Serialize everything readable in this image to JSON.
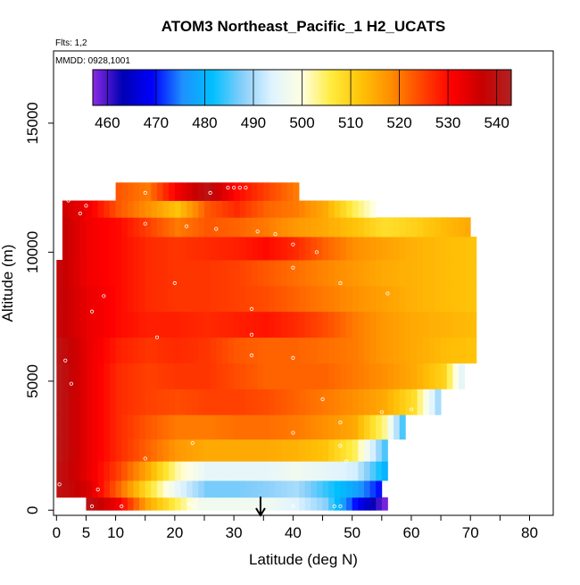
{
  "chart_data": {
    "type": "heatmap",
    "title": "ATOM3 Northeast_Pacific_1 H2_UCATS",
    "subtitle_flights": "Flts: 1,2",
    "subtitle_dates": "MMDD: 0928,1001",
    "xlabel": "Latitude (deg N)",
    "ylabel": "Altitude (m)",
    "xlim": [
      -0.5,
      84
    ],
    "ylim": [
      -200,
      17800
    ],
    "x_ticks": [
      0,
      5,
      10,
      20,
      30,
      40,
      50,
      60,
      70,
      80
    ],
    "x_ticks_unlabeled": [
      15,
      25,
      35,
      45,
      55,
      65,
      75
    ],
    "y_ticks": [
      0,
      5000,
      10000,
      15000
    ],
    "colorbar": {
      "min": 457,
      "max": 543,
      "ticks": [
        460,
        470,
        480,
        490,
        500,
        510,
        520,
        530,
        540
      ],
      "colors": [
        "#8a2be2",
        "#0000b4",
        "#0000ff",
        "#1e90ff",
        "#00bfff",
        "#87cefa",
        "#e0f4ff",
        "#ffffe0",
        "#ffeb3b",
        "#ffc107",
        "#ff8c00",
        "#ff4500",
        "#ff0000",
        "#c80000",
        "#b22222"
      ]
    },
    "arrow_marker": {
      "latitude": 34.5
    },
    "field_levels": [
      {
        "alt": 200,
        "values": [
          [
            5,
            540
          ],
          [
            10,
            532
          ],
          [
            15,
            515
          ],
          [
            20,
            505
          ],
          [
            24,
            497
          ],
          [
            30,
            497
          ],
          [
            35,
            497
          ],
          [
            40,
            494
          ],
          [
            45,
            488
          ],
          [
            50,
            470
          ],
          [
            55,
            458
          ]
        ]
      },
      {
        "alt": 800,
        "values": [
          [
            0,
            540
          ],
          [
            5,
            535
          ],
          [
            10,
            522
          ],
          [
            15,
            508
          ],
          [
            20,
            495
          ],
          [
            25,
            487
          ],
          [
            30,
            487
          ],
          [
            35,
            488
          ],
          [
            40,
            490
          ],
          [
            45,
            484
          ],
          [
            50,
            478
          ],
          [
            54,
            470
          ]
        ]
      },
      {
        "alt": 1500,
        "values": [
          [
            0,
            540
          ],
          [
            5,
            533
          ],
          [
            10,
            525
          ],
          [
            15,
            515
          ],
          [
            20,
            502
          ],
          [
            25,
            495
          ],
          [
            30,
            495
          ],
          [
            35,
            495
          ],
          [
            40,
            497
          ],
          [
            45,
            495
          ],
          [
            50,
            493
          ],
          [
            55,
            480
          ]
        ]
      },
      {
        "alt": 2300,
        "values": [
          [
            0,
            541
          ],
          [
            5,
            533
          ],
          [
            10,
            527
          ],
          [
            15,
            522
          ],
          [
            20,
            517
          ],
          [
            25,
            515
          ],
          [
            30,
            515
          ],
          [
            35,
            515
          ],
          [
            40,
            514
          ],
          [
            45,
            512
          ],
          [
            50,
            505
          ],
          [
            55,
            485
          ]
        ]
      },
      {
        "alt": 3200,
        "values": [
          [
            0,
            541
          ],
          [
            5,
            533
          ],
          [
            10,
            527
          ],
          [
            15,
            523
          ],
          [
            20,
            520
          ],
          [
            25,
            520
          ],
          [
            30,
            521
          ],
          [
            35,
            521
          ],
          [
            40,
            520
          ],
          [
            45,
            518
          ],
          [
            50,
            515
          ],
          [
            55,
            503
          ],
          [
            58,
            485
          ]
        ]
      },
      {
        "alt": 4200,
        "values": [
          [
            0,
            541
          ],
          [
            5,
            533
          ],
          [
            10,
            527
          ],
          [
            15,
            525
          ],
          [
            20,
            524
          ],
          [
            25,
            525
          ],
          [
            30,
            525
          ],
          [
            35,
            524
          ],
          [
            40,
            522
          ],
          [
            45,
            520
          ],
          [
            50,
            518
          ],
          [
            55,
            515
          ],
          [
            60,
            508
          ],
          [
            64,
            490
          ]
        ]
      },
      {
        "alt": 5200,
        "values": [
          [
            0,
            541
          ],
          [
            5,
            533
          ],
          [
            10,
            527
          ],
          [
            15,
            525
          ],
          [
            20,
            526
          ],
          [
            25,
            526
          ],
          [
            30,
            524
          ],
          [
            35,
            522
          ],
          [
            40,
            522
          ],
          [
            45,
            522
          ],
          [
            50,
            520
          ],
          [
            55,
            518
          ],
          [
            60,
            515
          ],
          [
            65,
            510
          ],
          [
            68,
            495
          ]
        ]
      },
      {
        "alt": 6200,
        "values": [
          [
            0,
            540
          ],
          [
            5,
            533
          ],
          [
            10,
            528
          ],
          [
            15,
            526
          ],
          [
            20,
            527
          ],
          [
            25,
            526
          ],
          [
            30,
            523
          ],
          [
            35,
            522
          ],
          [
            40,
            522
          ],
          [
            45,
            521
          ],
          [
            50,
            520
          ],
          [
            55,
            517
          ],
          [
            60,
            515
          ],
          [
            65,
            513
          ],
          [
            70,
            512
          ]
        ]
      },
      {
        "alt": 7200,
        "values": [
          [
            0,
            538
          ],
          [
            5,
            533
          ],
          [
            10,
            530
          ],
          [
            15,
            528
          ],
          [
            20,
            528
          ],
          [
            25,
            527
          ],
          [
            30,
            528
          ],
          [
            35,
            529
          ],
          [
            40,
            527
          ],
          [
            45,
            524
          ],
          [
            50,
            520
          ],
          [
            55,
            517
          ],
          [
            60,
            515
          ],
          [
            65,
            514
          ],
          [
            70,
            513
          ]
        ]
      },
      {
        "alt": 8200,
        "values": [
          [
            0,
            538
          ],
          [
            5,
            533
          ],
          [
            10,
            530
          ],
          [
            15,
            527
          ],
          [
            20,
            526
          ],
          [
            25,
            526
          ],
          [
            30,
            525
          ],
          [
            35,
            524
          ],
          [
            40,
            522
          ],
          [
            45,
            520
          ],
          [
            50,
            518
          ],
          [
            55,
            516
          ],
          [
            60,
            514
          ],
          [
            65,
            513
          ],
          [
            70,
            512
          ]
        ]
      },
      {
        "alt": 9200,
        "values": [
          [
            0,
            538
          ],
          [
            5,
            532
          ],
          [
            10,
            530
          ],
          [
            15,
            527
          ],
          [
            20,
            526
          ],
          [
            25,
            526
          ],
          [
            30,
            525
          ],
          [
            35,
            523
          ],
          [
            40,
            521
          ],
          [
            45,
            519
          ],
          [
            50,
            517
          ],
          [
            55,
            515
          ],
          [
            60,
            514
          ],
          [
            65,
            513
          ],
          [
            70,
            512
          ]
        ]
      },
      {
        "alt": 10200,
        "values": [
          [
            1,
            537
          ],
          [
            5,
            532
          ],
          [
            10,
            530
          ],
          [
            15,
            527
          ],
          [
            20,
            526
          ],
          [
            25,
            527
          ],
          [
            30,
            528
          ],
          [
            35,
            530
          ],
          [
            40,
            527
          ],
          [
            45,
            522
          ],
          [
            50,
            518
          ],
          [
            55,
            516
          ],
          [
            60,
            514
          ],
          [
            65,
            513
          ],
          [
            70,
            512
          ]
        ]
      },
      {
        "alt": 11000,
        "values": [
          [
            1,
            537
          ],
          [
            5,
            532
          ],
          [
            10,
            530
          ],
          [
            15,
            525
          ],
          [
            20,
            520
          ],
          [
            25,
            523
          ],
          [
            30,
            522
          ],
          [
            35,
            520
          ],
          [
            40,
            517
          ],
          [
            45,
            515
          ],
          [
            50,
            512
          ],
          [
            55,
            508
          ],
          [
            60,
            510
          ],
          [
            65,
            513
          ],
          [
            69,
            515
          ]
        ]
      },
      {
        "alt": 11700,
        "values": [
          [
            1,
            536
          ],
          [
            5,
            532
          ],
          [
            10,
            523
          ],
          [
            15,
            518
          ],
          [
            20,
            512
          ],
          [
            25,
            523
          ],
          [
            30,
            527
          ],
          [
            35,
            522
          ],
          [
            40,
            520
          ],
          [
            45,
            515
          ],
          [
            50,
            505
          ],
          [
            53,
            500
          ]
        ]
      },
      {
        "alt": 12300,
        "values": [
          [
            10,
            523
          ],
          [
            15,
            520
          ],
          [
            20,
            532
          ],
          [
            25,
            540
          ],
          [
            30,
            530
          ],
          [
            35,
            525
          ],
          [
            40,
            520
          ]
        ]
      }
    ],
    "sample_points": [
      {
        "lat": 6,
        "alt": 150
      },
      {
        "lat": 7,
        "alt": 800
      },
      {
        "lat": 0.5,
        "alt": 1000
      },
      {
        "lat": 11,
        "alt": 150
      },
      {
        "lat": 22.5,
        "alt": 250
      },
      {
        "lat": 23,
        "alt": 150
      },
      {
        "lat": 40,
        "alt": 150
      },
      {
        "lat": 47,
        "alt": 150
      },
      {
        "lat": 48,
        "alt": 150
      },
      {
        "lat": 15,
        "alt": 2000
      },
      {
        "lat": 23,
        "alt": 2600
      },
      {
        "lat": 40,
        "alt": 3000
      },
      {
        "lat": 48,
        "alt": 2500
      },
      {
        "lat": 49,
        "alt": 1900
      },
      {
        "lat": 48,
        "alt": 3400
      },
      {
        "lat": 2.5,
        "alt": 4900
      },
      {
        "lat": 1.5,
        "alt": 5800
      },
      {
        "lat": 45,
        "alt": 4300
      },
      {
        "lat": 55,
        "alt": 3800
      },
      {
        "lat": 60,
        "alt": 3900
      },
      {
        "lat": 33,
        "alt": 6000
      },
      {
        "lat": 40,
        "alt": 5900
      },
      {
        "lat": 17,
        "alt": 6700
      },
      {
        "lat": 33,
        "alt": 6800
      },
      {
        "lat": 6,
        "alt": 7700
      },
      {
        "lat": 33,
        "alt": 7800
      },
      {
        "lat": 8,
        "alt": 8300
      },
      {
        "lat": 20,
        "alt": 8800
      },
      {
        "lat": 48,
        "alt": 8800
      },
      {
        "lat": 56,
        "alt": 8400
      },
      {
        "lat": 40,
        "alt": 9400
      },
      {
        "lat": 44,
        "alt": 10000
      },
      {
        "lat": 40,
        "alt": 10300
      },
      {
        "lat": 37,
        "alt": 10700
      },
      {
        "lat": 34,
        "alt": 10800
      },
      {
        "lat": 27,
        "alt": 10900
      },
      {
        "lat": 15,
        "alt": 11100
      },
      {
        "lat": 22,
        "alt": 11000
      },
      {
        "lat": 4,
        "alt": 11500
      },
      {
        "lat": 5,
        "alt": 11800
      },
      {
        "lat": 2,
        "alt": 12000
      },
      {
        "lat": 15,
        "alt": 12300
      },
      {
        "lat": 26,
        "alt": 12300
      },
      {
        "lat": 32,
        "alt": 12500
      },
      {
        "lat": 29,
        "alt": 12500
      },
      {
        "lat": 30,
        "alt": 12500
      },
      {
        "lat": 31,
        "alt": 12500
      }
    ]
  }
}
